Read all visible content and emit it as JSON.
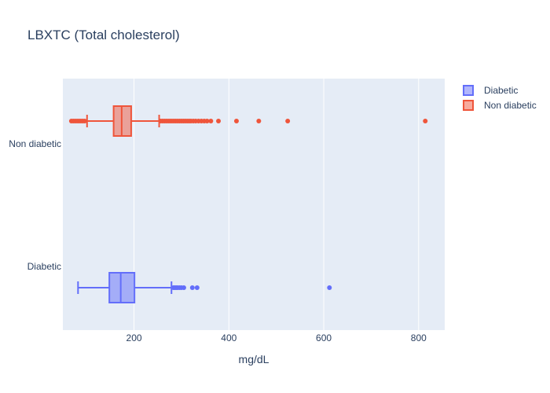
{
  "chart_data": {
    "type": "box",
    "orientation": "horizontal",
    "title": "LBXTC (Total cholesterol)",
    "xlabel": "mg/dL",
    "ylabel": "",
    "xlim": [
      50,
      855
    ],
    "x_ticks": [
      200,
      400,
      600,
      800
    ],
    "categories": [
      "Diabetic",
      "Non diabetic"
    ],
    "grid": true,
    "legend_position": "top-right",
    "series": [
      {
        "name": "Diabetic",
        "category": "Diabetic",
        "color": "#636efa",
        "whisker_low": 82,
        "q1": 148,
        "median": 172,
        "q3": 201,
        "whisker_high": 279,
        "outliers_high": [
          283,
          286,
          289,
          292,
          296,
          300,
          305,
          323,
          333,
          612
        ]
      },
      {
        "name": "Non diabetic",
        "category": "Non diabetic",
        "color": "#ef553b",
        "whisker_low": 101,
        "q1": 157,
        "median": 174,
        "q3": 194,
        "whisker_high": 253,
        "outliers_low": [
          68,
          72,
          76,
          80,
          84,
          88,
          92,
          96
        ],
        "outliers_high": [
          256,
          260,
          264,
          268,
          272,
          276,
          280,
          284,
          288,
          292,
          296,
          300,
          304,
          308,
          312,
          316,
          320,
          325,
          330,
          336,
          342,
          348,
          354,
          362,
          378,
          416,
          463,
          524,
          814
        ]
      }
    ]
  }
}
